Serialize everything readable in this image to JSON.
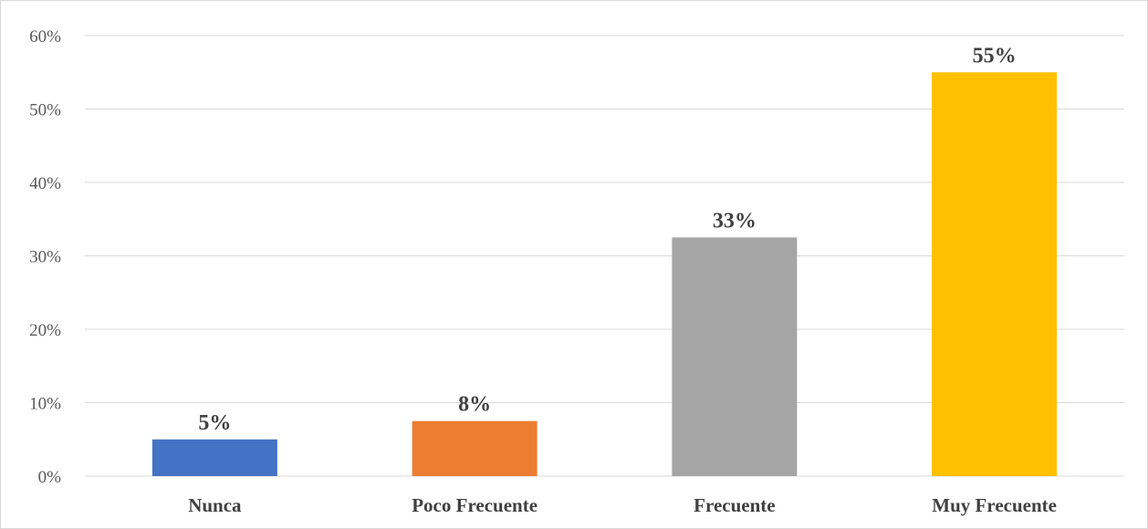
{
  "chart_data": {
    "type": "bar",
    "categories": [
      "Nunca",
      "Poco Frecuente",
      "Frecuente",
      "Muy Frecuente"
    ],
    "values": [
      5,
      7.5,
      32.5,
      55
    ],
    "data_labels": [
      "5%",
      "8%",
      "33%",
      "55%"
    ],
    "colors": [
      "#4472c4",
      "#ed7d31",
      "#a5a5a5",
      "#ffc000"
    ],
    "title": "",
    "xlabel": "",
    "ylabel": "",
    "ylim": [
      0,
      60
    ],
    "yticks": [
      0,
      10,
      20,
      30,
      40,
      50,
      60
    ],
    "ytick_labels": [
      "0%",
      "10%",
      "20%",
      "30%",
      "40%",
      "50%",
      "60%"
    ],
    "grid": true,
    "legend": "none"
  }
}
